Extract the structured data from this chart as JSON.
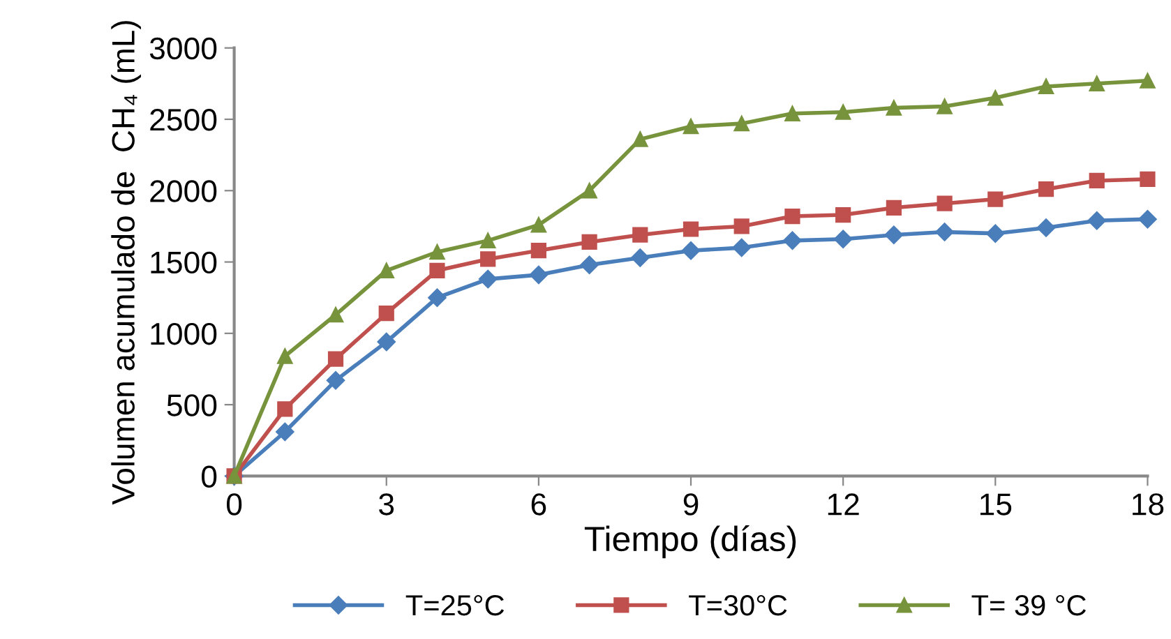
{
  "chart_data": {
    "type": "line",
    "xlabel": "Tiempo (días)",
    "ylabel": "Volumen acumulado de  CH₄ (mL)",
    "x": [
      0,
      1,
      2,
      3,
      4,
      5,
      6,
      7,
      8,
      9,
      10,
      11,
      12,
      13,
      14,
      15,
      16,
      17,
      18
    ],
    "series": [
      {
        "name": "T=25°C",
        "color": "#4a7ebb",
        "marker": "diamond",
        "values": [
          0,
          310,
          670,
          940,
          1250,
          1380,
          1410,
          1480,
          1530,
          1580,
          1600,
          1650,
          1660,
          1690,
          1710,
          1700,
          1740,
          1790,
          1800
        ]
      },
      {
        "name": "T=30°C",
        "color": "#c0504d",
        "marker": "square",
        "values": [
          0,
          470,
          820,
          1140,
          1440,
          1520,
          1580,
          1640,
          1690,
          1730,
          1750,
          1820,
          1830,
          1880,
          1910,
          1940,
          2010,
          2070,
          2080
        ]
      },
      {
        "name": "T= 39 °C",
        "color": "#77933c",
        "marker": "triangle",
        "values": [
          0,
          840,
          1130,
          1440,
          1570,
          1650,
          1760,
          2000,
          2360,
          2450,
          2470,
          2540,
          2550,
          2580,
          2590,
          2650,
          2730,
          2750,
          2770
        ]
      }
    ],
    "xlim": [
      0,
      18
    ],
    "xticks": [
      0,
      3,
      6,
      9,
      12,
      15,
      18
    ],
    "ylim": [
      0,
      3000
    ],
    "yticks": [
      0,
      500,
      1000,
      1500,
      2000,
      2500,
      3000
    ],
    "grid": false,
    "legend": "bottom",
    "line_style": "solid"
  }
}
